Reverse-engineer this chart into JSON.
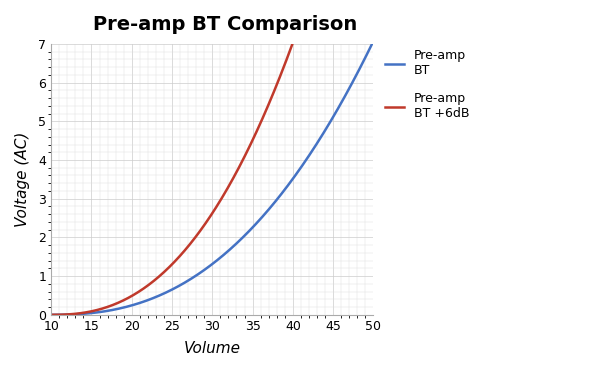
{
  "title": "Pre-amp BT Comparison",
  "xlabel": "Volume",
  "ylabel": "Voltage (AC)",
  "xlim": [
    10,
    50
  ],
  "ylim": [
    0,
    7
  ],
  "xticks": [
    10,
    15,
    20,
    25,
    30,
    35,
    40,
    45,
    50
  ],
  "yticks": [
    0,
    1,
    2,
    3,
    4,
    5,
    6,
    7
  ],
  "line1_color": "#4472C4",
  "line2_color": "#C0392B",
  "line1_label": "Pre-amp\nBT",
  "line2_label": "Pre-amp\nBT +6dB",
  "line_width": 1.8,
  "bg_color": "#ffffff",
  "grid_color": "#cccccc",
  "grid_minor_color": "#dddddd",
  "title_fontsize": 14,
  "axis_label_fontsize": 11,
  "tick_fontsize": 9,
  "blue_a": 0.000905,
  "blue_n": 2.43,
  "red_factor": 2.0
}
